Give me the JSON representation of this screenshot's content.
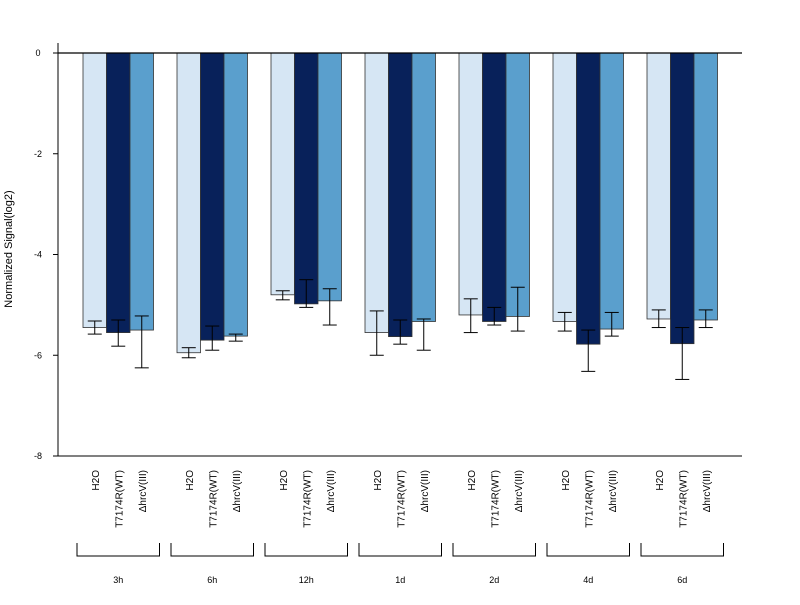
{
  "chart_data": {
    "type": "bar",
    "ylabel": "Normalized Signal(log2)",
    "ylim": [
      -8,
      0
    ],
    "yticks": [
      0,
      -2,
      -4,
      -6,
      -8
    ],
    "grid": false,
    "groups": [
      "3h",
      "6h",
      "12h",
      "1d",
      "2d",
      "4d",
      "6d"
    ],
    "categories": [
      "H2O",
      "T7174R(WT)",
      "ΔhrcV(III)"
    ],
    "series_colors": [
      "#d6e6f4",
      "#08215a",
      "#5a9fcd"
    ],
    "values": [
      [
        -5.45,
        -5.55,
        -5.5
      ],
      [
        -5.95,
        -5.7,
        -5.62
      ],
      [
        -4.8,
        -4.98,
        -4.92
      ],
      [
        -5.55,
        -5.63,
        -5.33
      ],
      [
        -5.2,
        -5.33,
        -5.23
      ],
      [
        -5.33,
        -5.78,
        -5.48
      ],
      [
        -5.28,
        -5.77,
        -5.3
      ]
    ],
    "error_low": [
      [
        -5.58,
        -5.82,
        -6.25
      ],
      [
        -6.05,
        -5.9,
        -5.72
      ],
      [
        -4.9,
        -5.05,
        -5.4
      ],
      [
        -6.0,
        -5.78,
        -5.9
      ],
      [
        -5.55,
        -5.4,
        -5.52
      ],
      [
        -5.52,
        -6.32,
        -5.62
      ],
      [
        -5.45,
        -6.48,
        -5.45
      ]
    ],
    "error_high": [
      [
        -5.32,
        -5.3,
        -5.22
      ],
      [
        -5.85,
        -5.42,
        -5.58
      ],
      [
        -4.72,
        -4.5,
        -4.68
      ],
      [
        -5.12,
        -5.3,
        -5.28
      ],
      [
        -4.88,
        -5.05,
        -4.65
      ],
      [
        -5.15,
        -5.5,
        -5.15
      ],
      [
        -5.1,
        -5.45,
        -5.1
      ]
    ]
  }
}
